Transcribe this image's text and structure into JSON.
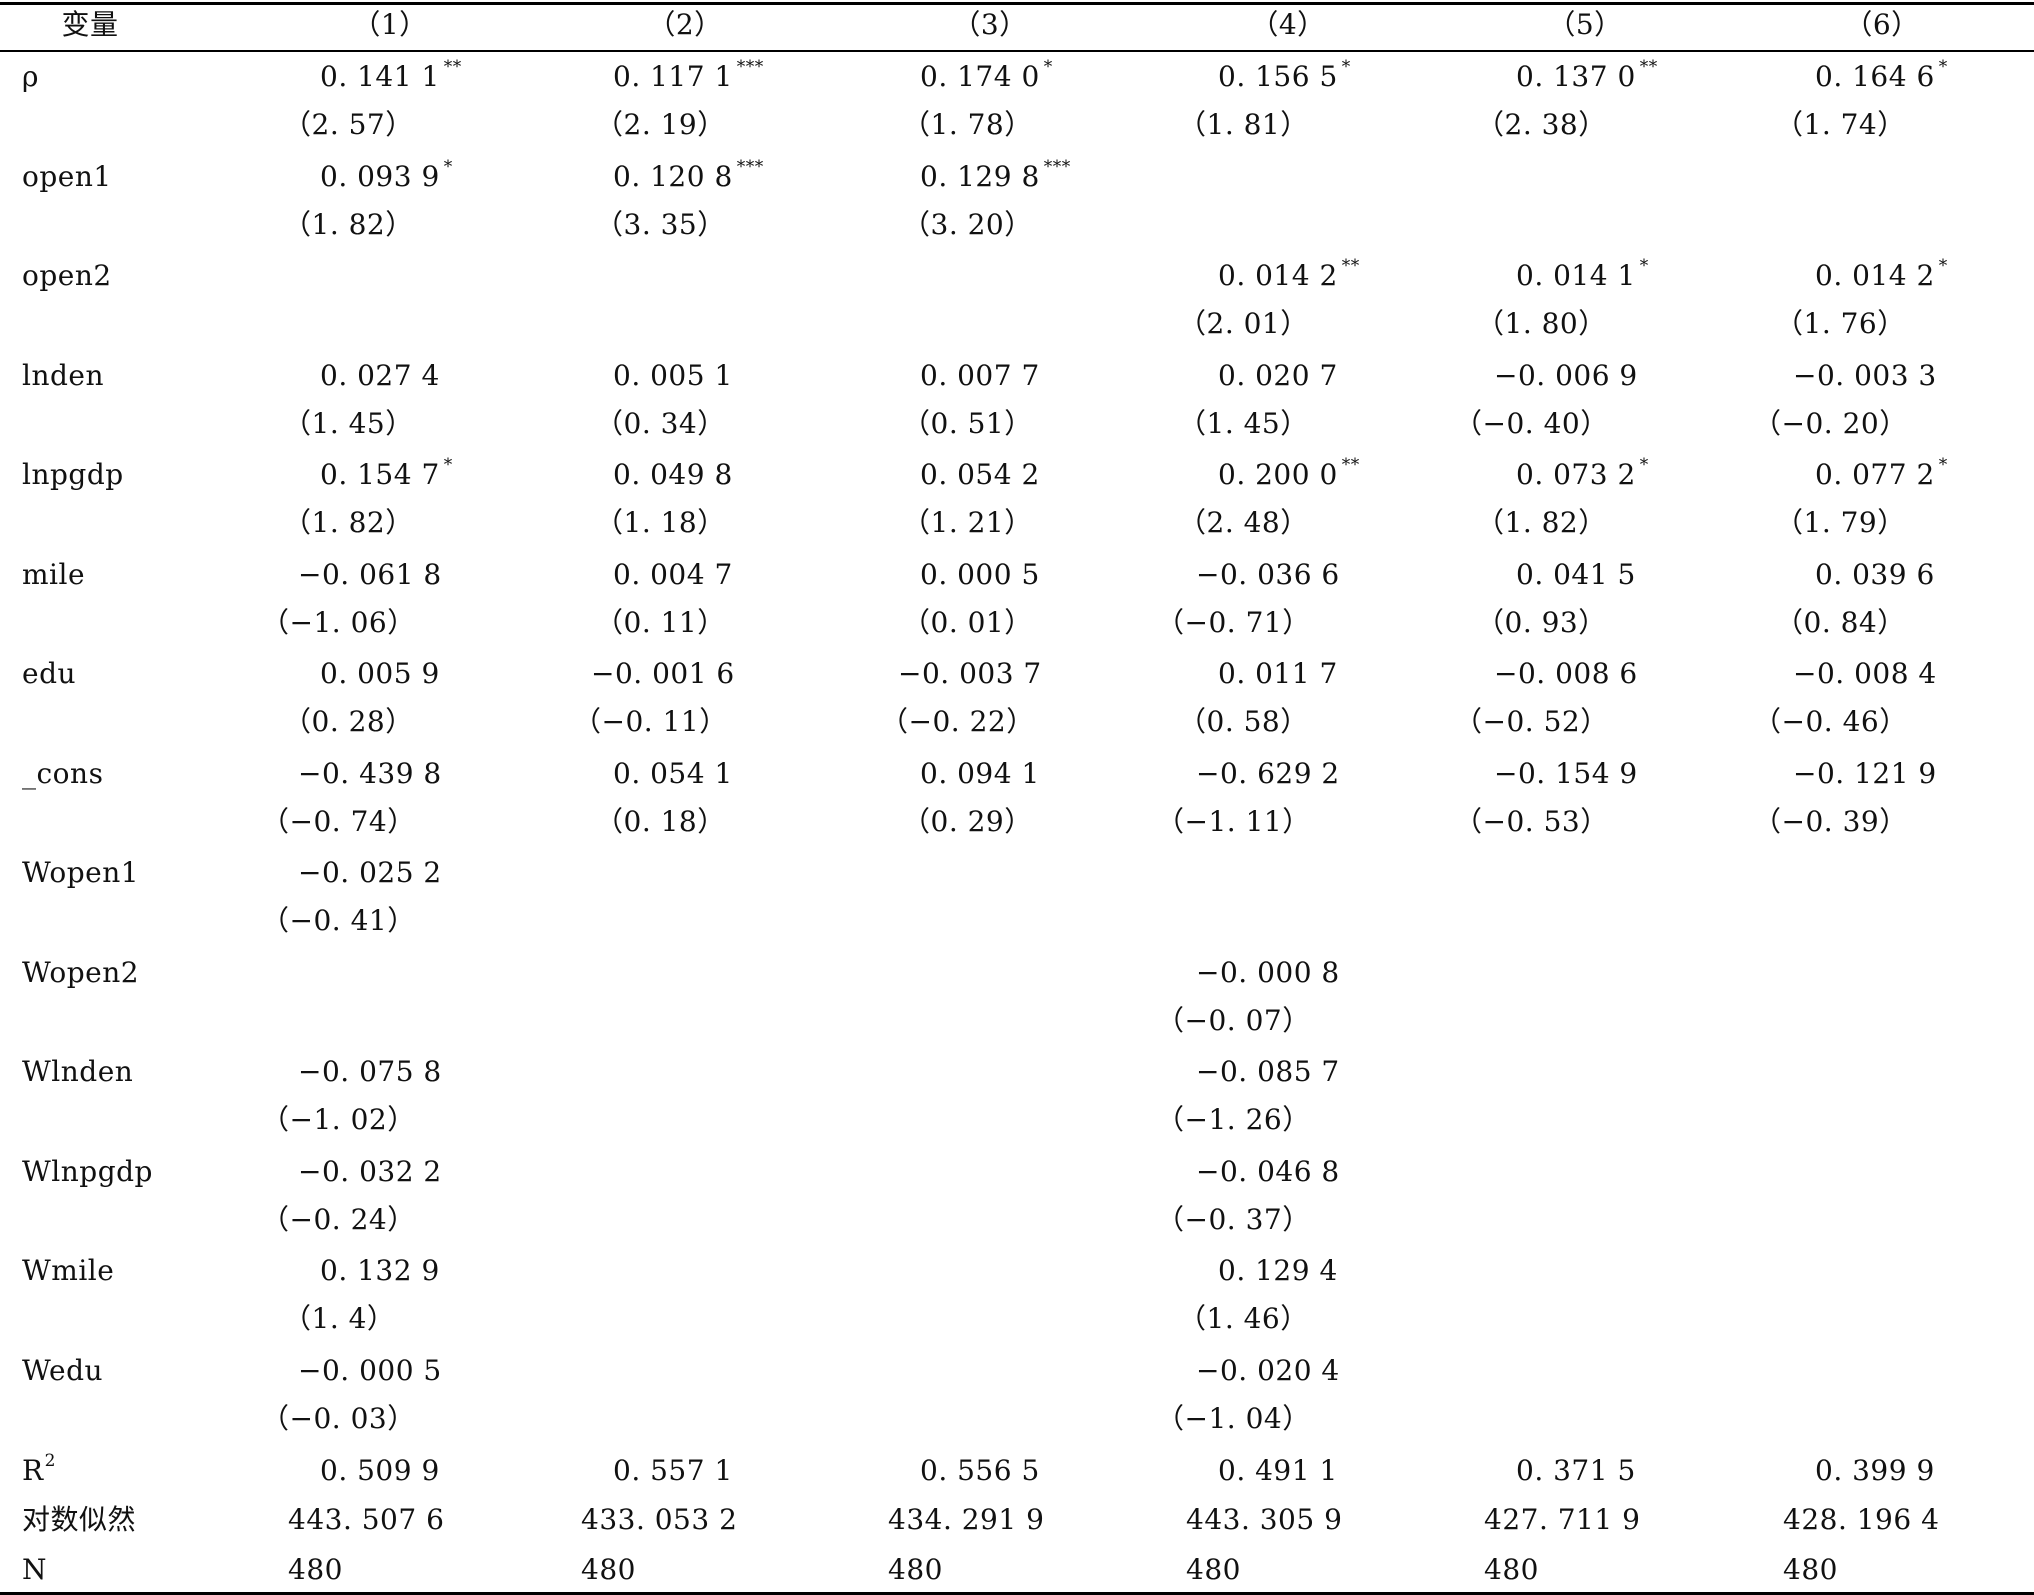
{
  "headers": [
    "变量",
    "（1）",
    "（2）",
    "（3）",
    "（4）",
    "（5）",
    "（6）"
  ],
  "rows": [
    {
      "label": "ρ",
      "coef": [
        [
          "0. 141 1",
          "**"
        ],
        [
          "0. 117 1",
          "***"
        ],
        [
          "0. 174 0",
          "*"
        ],
        [
          "0. 156 5",
          "*"
        ],
        [
          "0. 137 0",
          "**"
        ],
        [
          "0. 164 6",
          "*"
        ]
      ],
      "t": [
        "（2. 57）",
        "（2. 19）",
        "（1. 78）",
        "（1. 81）",
        "（2. 38）",
        "（1. 74）"
      ]
    },
    {
      "label": "open1",
      "coef": [
        [
          "0. 093 9",
          "*"
        ],
        [
          "0. 120 8",
          "***"
        ],
        [
          "0. 129 8",
          "***"
        ],
        [
          "",
          ""
        ],
        [
          "",
          ""
        ],
        [
          "",
          ""
        ]
      ],
      "t": [
        "（1. 82）",
        "（3. 35）",
        "（3. 20）",
        "",
        "",
        ""
      ]
    },
    {
      "label": "open2",
      "coef": [
        [
          "",
          ""
        ],
        [
          "",
          ""
        ],
        [
          "",
          ""
        ],
        [
          "0. 014 2",
          "**"
        ],
        [
          "0. 014 1",
          "*"
        ],
        [
          "0. 014 2",
          "*"
        ]
      ],
      "t": [
        "",
        "",
        "",
        "（2. 01）",
        "（1. 80）",
        "（1. 76）"
      ]
    },
    {
      "label": "lnden",
      "coef": [
        [
          "0. 027 4",
          ""
        ],
        [
          "0. 005 1",
          ""
        ],
        [
          "0. 007 7",
          ""
        ],
        [
          "0. 020 7",
          ""
        ],
        [
          "−0. 006 9",
          ""
        ],
        [
          "−0. 003 3",
          ""
        ]
      ],
      "t": [
        "（1. 45）",
        "（0. 34）",
        "（0. 51）",
        "（1. 45）",
        "（−0. 40）",
        "（−0. 20）"
      ]
    },
    {
      "label": "lnpgdp",
      "coef": [
        [
          "0. 154 7",
          "*"
        ],
        [
          "0. 049 8",
          ""
        ],
        [
          "0. 054 2",
          ""
        ],
        [
          "0. 200 0",
          "**"
        ],
        [
          "0. 073 2",
          "*"
        ],
        [
          "0. 077 2",
          "*"
        ]
      ],
      "t": [
        "（1. 82）",
        "（1. 18）",
        "（1. 21）",
        "（2. 48）",
        "（1. 82）",
        "（1. 79）"
      ]
    },
    {
      "label": "mile",
      "coef": [
        [
          "−0. 061 8",
          ""
        ],
        [
          "0. 004 7",
          ""
        ],
        [
          "0. 000 5",
          ""
        ],
        [
          "−0. 036 6",
          ""
        ],
        [
          "0. 041 5",
          ""
        ],
        [
          "0. 039 6",
          ""
        ]
      ],
      "t": [
        "（−1. 06）",
        "（0. 11）",
        "（0. 01）",
        "（−0. 71）",
        "（0. 93）",
        "（0. 84）"
      ]
    },
    {
      "label": "edu",
      "coef": [
        [
          "0. 005 9",
          ""
        ],
        [
          "−0. 001 6",
          ""
        ],
        [
          "−0. 003 7",
          ""
        ],
        [
          "0. 011 7",
          ""
        ],
        [
          "−0. 008 6",
          ""
        ],
        [
          "−0. 008 4",
          ""
        ]
      ],
      "t": [
        "（0. 28）",
        "（−0. 11）",
        "（−0. 22）",
        "（0. 58）",
        "（−0. 52）",
        "（−0. 46）"
      ]
    },
    {
      "label": "_cons",
      "coef": [
        [
          "−0. 439 8",
          ""
        ],
        [
          "0. 054 1",
          ""
        ],
        [
          "0. 094 1",
          ""
        ],
        [
          "−0. 629 2",
          ""
        ],
        [
          "−0. 154 9",
          ""
        ],
        [
          "−0. 121 9",
          ""
        ]
      ],
      "t": [
        "（−0. 74）",
        "（0. 18）",
        "（0. 29）",
        "（−1. 11）",
        "（−0. 53）",
        "（−0. 39）"
      ]
    },
    {
      "label": "Wopen1",
      "coef": [
        [
          "−0. 025 2",
          ""
        ],
        [
          "",
          ""
        ],
        [
          "",
          ""
        ],
        [
          "",
          ""
        ],
        [
          "",
          ""
        ],
        [
          "",
          ""
        ]
      ],
      "t": [
        "（−0. 41）",
        "",
        "",
        "",
        "",
        ""
      ]
    },
    {
      "label": "Wopen2",
      "coef": [
        [
          "",
          ""
        ],
        [
          "",
          ""
        ],
        [
          "",
          ""
        ],
        [
          "−0. 000 8",
          ""
        ],
        [
          "",
          ""
        ],
        [
          "",
          ""
        ]
      ],
      "t": [
        "",
        "",
        "",
        "（−0. 07）",
        "",
        ""
      ]
    },
    {
      "label": "Wlnden",
      "coef": [
        [
          "−0. 075 8",
          ""
        ],
        [
          "",
          ""
        ],
        [
          "",
          ""
        ],
        [
          "−0. 085 7",
          ""
        ],
        [
          "",
          ""
        ],
        [
          "",
          ""
        ]
      ],
      "t": [
        "（−1. 02）",
        "",
        "",
        "（−1. 26）",
        "",
        ""
      ]
    },
    {
      "label": "Wlnpgdp",
      "coef": [
        [
          "−0. 032 2",
          ""
        ],
        [
          "",
          ""
        ],
        [
          "",
          ""
        ],
        [
          "−0. 046 8",
          ""
        ],
        [
          "",
          ""
        ],
        [
          "",
          ""
        ]
      ],
      "t": [
        "（−0. 24）",
        "",
        "",
        "（−0. 37）",
        "",
        ""
      ]
    },
    {
      "label": "Wmile",
      "coef": [
        [
          "0. 132 9",
          ""
        ],
        [
          "",
          ""
        ],
        [
          "",
          ""
        ],
        [
          "0. 129 4",
          ""
        ],
        [
          "",
          ""
        ],
        [
          "",
          ""
        ]
      ],
      "t": [
        "（1. 4）",
        "",
        "",
        "（1. 46）",
        "",
        ""
      ]
    },
    {
      "label": "Wedu",
      "coef": [
        [
          "−0. 000 5",
          ""
        ],
        [
          "",
          ""
        ],
        [
          "",
          ""
        ],
        [
          "−0. 020 4",
          ""
        ],
        [
          "",
          ""
        ],
        [
          "",
          ""
        ]
      ],
      "t": [
        "（−0. 03）",
        "",
        "",
        "（−1. 04）",
        "",
        ""
      ]
    }
  ],
  "r2": {
    "label": "R",
    "sup": "2",
    "values": [
      "0. 509 9",
      "0. 557 1",
      "0. 556 5",
      "0. 491 1",
      "0. 371 5",
      "0. 399 9"
    ]
  },
  "loglik": {
    "label": "对数似然",
    "values": [
      "443. 507 6",
      "433. 053 2",
      "434. 291 9",
      "443. 305 9",
      "427. 711 9",
      "428. 196 4"
    ]
  },
  "n": {
    "label": "N",
    "values": [
      "480",
      "480",
      "480",
      "480",
      "480",
      "480"
    ]
  }
}
